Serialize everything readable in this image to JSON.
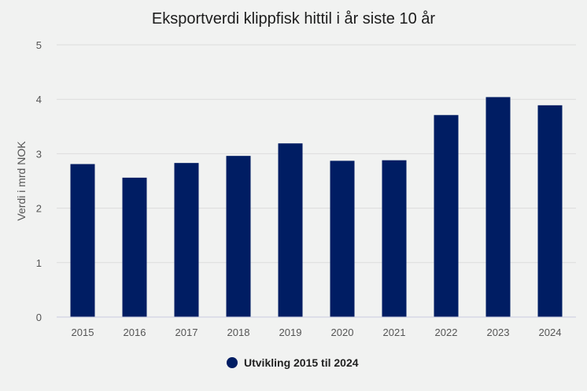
{
  "chart_data": {
    "type": "bar",
    "title": "Eksportverdi klippfisk hittil i år siste 10 år",
    "xlabel": "",
    "ylabel": "Verdi i mrd NOK",
    "categories": [
      "2015",
      "2016",
      "2017",
      "2018",
      "2019",
      "2020",
      "2021",
      "2022",
      "2023",
      "2024"
    ],
    "series": [
      {
        "name": "Utvikling 2015 til 2024",
        "values": [
          2.81,
          2.56,
          2.83,
          2.96,
          3.19,
          2.87,
          2.88,
          3.71,
          4.04,
          3.89
        ],
        "color": "#001d63"
      }
    ],
    "ylim": [
      0,
      5
    ],
    "yticks": [
      0,
      1,
      2,
      3,
      4,
      5
    ],
    "grid": true,
    "legend_position": "bottom-center"
  }
}
